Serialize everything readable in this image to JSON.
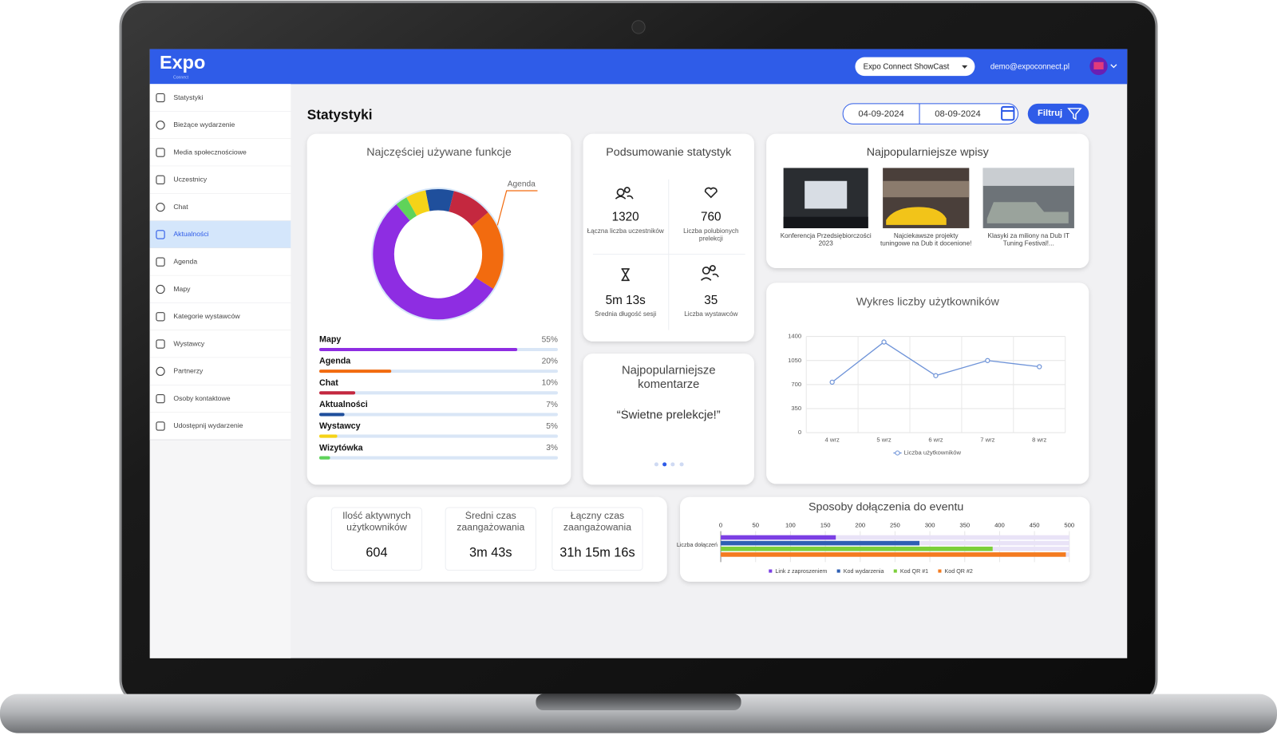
{
  "header": {
    "logo": "Expo",
    "logo_sub": "Connect",
    "event": "Expo Connect ShowCast",
    "email": "demo@expoconnect.pl"
  },
  "sidebar": {
    "items": [
      "Statystyki",
      "Bieżące wydarzenie",
      "Media społecznościowe",
      "Uczestnicy",
      "Chat",
      "Aktualności",
      "Agenda",
      "Mapy",
      "Kategorie wystawców",
      "Wystawcy",
      "Partnerzy",
      "Osoby kontaktowe",
      "Udostępnij wydarzenie"
    ],
    "active_item": 5
  },
  "page": {
    "title": "Statystyki",
    "date_from": "04-09-2024",
    "date_to": "08-09-2024",
    "filter_button": "Filtruj"
  },
  "chart_data": [
    {
      "type": "donut",
      "title": "Najczęściej używane funkcje",
      "annotation": "Agenda",
      "categories": [
        "Mapy",
        "Agenda",
        "Chat",
        "Aktualności",
        "Wystawcy",
        "Wizytówka"
      ],
      "values": [
        55,
        20,
        10,
        7,
        5,
        3
      ],
      "value_labels": [
        "55%",
        "20%",
        "10%",
        "7%",
        "5%",
        "3%"
      ],
      "colors": [
        "#8e2de2",
        "#f26b0f",
        "#c4283f",
        "#1f4f9c",
        "#f5d318",
        "#5fd35a"
      ]
    },
    {
      "type": "line",
      "title": "Wykres liczby użytkowników",
      "categories": [
        "4 wrz",
        "5 wrz",
        "6 wrz",
        "7 wrz",
        "8 wrz"
      ],
      "series": [
        {
          "name": "Liczba użytkowników",
          "color": "#6e93d8",
          "values": [
            735,
            1320,
            830,
            1050,
            960
          ]
        }
      ],
      "ylim": [
        0,
        1400
      ],
      "yticks": [
        0,
        350,
        700,
        1050,
        1400
      ],
      "grid": true,
      "legend": "bottom"
    },
    {
      "type": "hbar",
      "title": "Sposoby dołączenia do eventu",
      "categories": [
        "Liczba dołączeń"
      ],
      "series": [
        {
          "name": "Link z zaproszeniem",
          "color": "#7b3fe4",
          "values": [
            165
          ]
        },
        {
          "name": "Kod wydarzenia",
          "color": "#2f5fb3",
          "values": [
            285
          ]
        },
        {
          "name": "Kod QR #1",
          "color": "#7ccf3a",
          "values": [
            390
          ]
        },
        {
          "name": "Kod QR #2",
          "color": "#f47b20",
          "values": [
            495
          ]
        }
      ],
      "xlim": [
        0,
        500
      ],
      "xticks": [
        0,
        50,
        100,
        150,
        200,
        250,
        300,
        350,
        400,
        450,
        500
      ],
      "grid": true,
      "legend": "bottom"
    }
  ],
  "summary": {
    "title": "Podsumowanie statystyk",
    "stats": [
      {
        "value": 1320,
        "label": "Łączna liczba uczestników"
      },
      {
        "value": 760,
        "label": "Liczba polubionych prelekcji"
      },
      {
        "value": "5m 13s",
        "label": "Średnia długość sesji"
      },
      {
        "value": 35,
        "label": "Liczba wystawców"
      }
    ]
  },
  "comments": {
    "title": "Najpopularniejsze komentarze",
    "items": [
      "“Świetne prelekcje!”"
    ]
  },
  "posts": {
    "title": "Najpopularniejsze wpisy",
    "items": [
      {
        "caption": "Konferencja Przedsiębiorczości 2023"
      },
      {
        "caption": "Najciekawsze projekty tuningowe na Dub it docenione!"
      },
      {
        "caption": "Klasyki za miliony na Dub IT Tuning Festival!..."
      }
    ]
  },
  "kpis": [
    {
      "label": "Ilość aktywnych użytkowników",
      "value": 604
    },
    {
      "label": "Średni czas zaangażowania",
      "value": "3m 43s"
    },
    {
      "label": "Łączny czas zaangażowania",
      "value": "31h 15m 16s"
    }
  ]
}
